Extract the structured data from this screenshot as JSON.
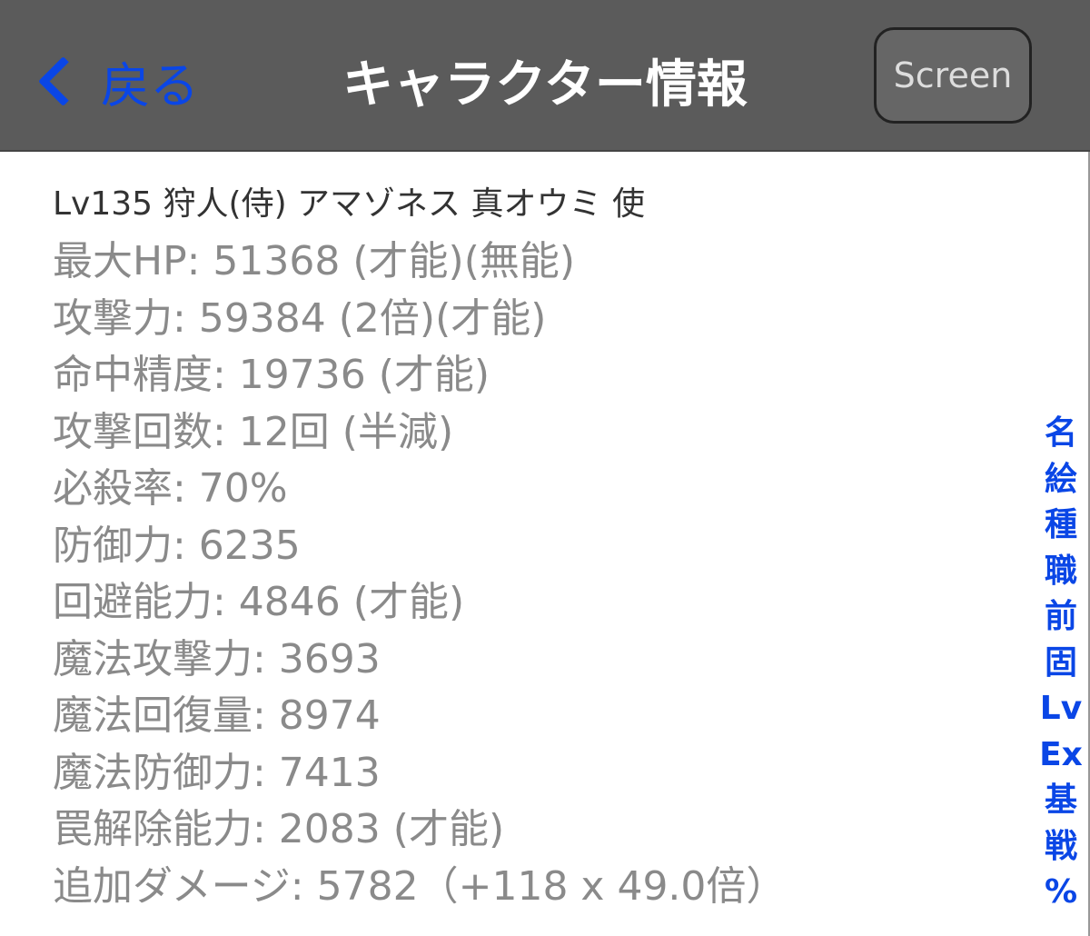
{
  "nav": {
    "back_label": "戻る",
    "title": "キャラクター情報",
    "screen_label": "Screen"
  },
  "header_line": "Lv135 狩人(侍) アマゾネス 真オウミ 使",
  "stats": [
    "最大HP: 51368 (才能)(無能)",
    "攻撃力: 59384  (2倍)(才能)",
    "命中精度: 19736  (才能)",
    "攻撃回数: 12回 (半減)",
    "必殺率: 70%",
    "防御力: 6235",
    "回避能力: 4846 (才能)",
    "魔法攻撃力: 3693",
    "魔法回復量: 8974",
    "魔法防御力: 7413",
    "罠解除能力: 2083  (才能)",
    "追加ダメージ: 5782（+118 x 49.0倍）"
  ],
  "index": [
    "名",
    "絵",
    "種",
    "職",
    "前",
    "固",
    "Lv",
    "Ex",
    "基",
    "戦",
    "%"
  ],
  "colors": {
    "accent": "#0a46e6",
    "nav_bg": "#5b5b5b"
  }
}
